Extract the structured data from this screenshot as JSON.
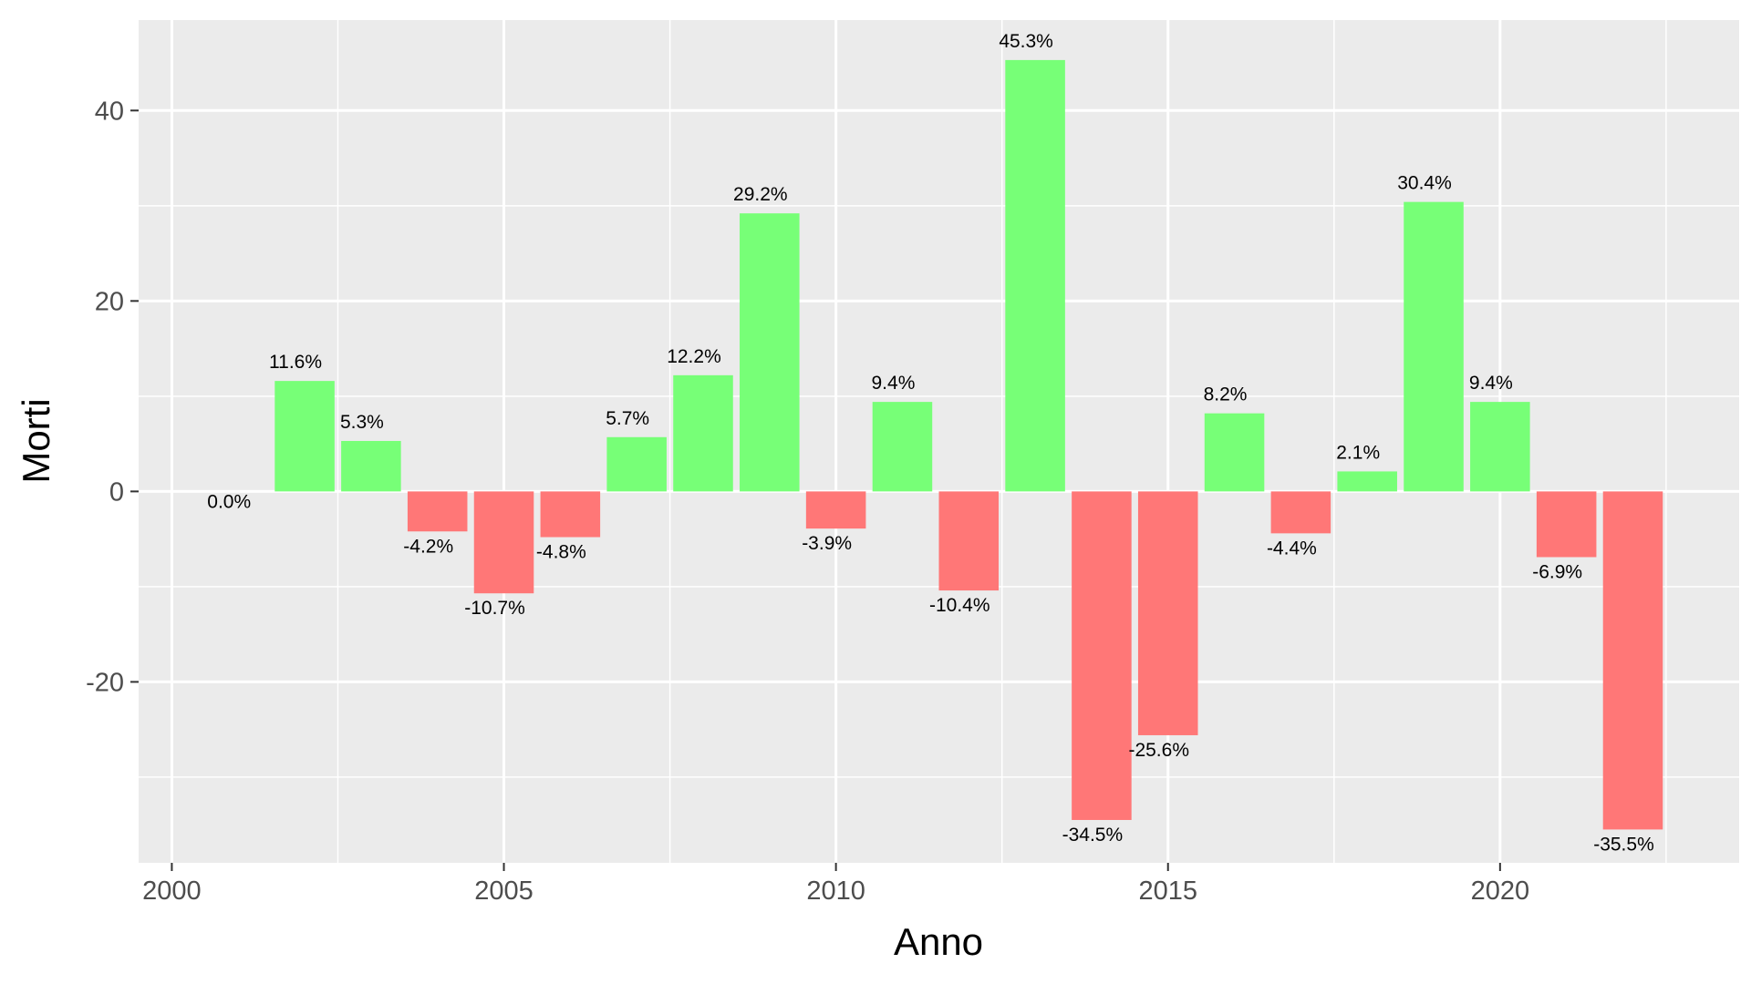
{
  "chart_data": {
    "type": "bar",
    "title": "",
    "xlabel": "Anno",
    "ylabel": "Morti",
    "x": [
      2001,
      2002,
      2003,
      2004,
      2005,
      2006,
      2007,
      2008,
      2009,
      2010,
      2011,
      2012,
      2013,
      2014,
      2015,
      2016,
      2017,
      2018,
      2019,
      2020,
      2021,
      2022
    ],
    "values": [
      0.0,
      11.6,
      5.3,
      -4.2,
      -10.7,
      -4.8,
      5.7,
      12.2,
      29.2,
      -3.9,
      9.4,
      -10.4,
      45.3,
      -34.5,
      -25.6,
      8.2,
      -4.4,
      2.1,
      30.4,
      9.4,
      -6.9,
      -35.5
    ],
    "labels": [
      "0.0%",
      "11.6%",
      "5.3%",
      "-4.2%",
      "-10.7%",
      "-4.8%",
      "5.7%",
      "12.2%",
      "29.2%",
      "-3.9%",
      "9.4%",
      "-10.4%",
      "45.3%",
      "-34.5%",
      "-25.6%",
      "8.2%",
      "-4.4%",
      "2.1%",
      "30.4%",
      "9.4%",
      "-6.9%",
      "-35.5%"
    ],
    "xlim": [
      1999.5,
      2023.6
    ],
    "ylim": [
      -39,
      49.5
    ],
    "x_ticks": [
      2000,
      2005,
      2010,
      2015,
      2020
    ],
    "x_tick_labels": [
      "2000",
      "2005",
      "2010",
      "2015",
      "2020"
    ],
    "y_ticks": [
      -20,
      0,
      20,
      40
    ],
    "y_tick_labels": [
      "-20",
      "0",
      "20",
      "40"
    ],
    "grid": true,
    "legend": "none",
    "colors": {
      "positive": "#77ff77",
      "negative": "#ff7777",
      "panel_background": "#ebebeb",
      "grid_line": "#ffffff",
      "tick_text": "#4d4d4d"
    }
  }
}
